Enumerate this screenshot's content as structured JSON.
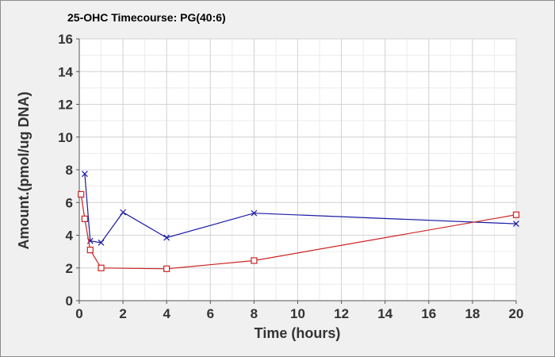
{
  "chart_data": {
    "type": "line",
    "title": "25-OHC Timecourse: PG(40:6)",
    "xlabel": "Time (hours)",
    "ylabel": "Amount.(pmol/ug DNA)",
    "xlim": [
      0,
      20
    ],
    "ylim": [
      0,
      16
    ],
    "xticks": [
      0,
      2,
      4,
      6,
      8,
      10,
      12,
      14,
      16,
      18,
      20
    ],
    "yticks": [
      0,
      2,
      4,
      6,
      8,
      10,
      12,
      14,
      16
    ],
    "grid": true,
    "legend": "none",
    "series": [
      {
        "color": "#1a1aa6",
        "marker": "x",
        "x": [
          0.25,
          0.5,
          1,
          2,
          4,
          8,
          20
        ],
        "y": [
          7.75,
          3.65,
          3.55,
          5.4,
          3.85,
          5.35,
          4.7
        ]
      },
      {
        "color": "#cc2222",
        "marker": "square",
        "x": [
          0.08,
          0.25,
          0.5,
          1,
          4,
          8,
          20
        ],
        "y": [
          6.5,
          5.0,
          3.1,
          2.0,
          1.95,
          2.45,
          5.25
        ]
      }
    ]
  }
}
